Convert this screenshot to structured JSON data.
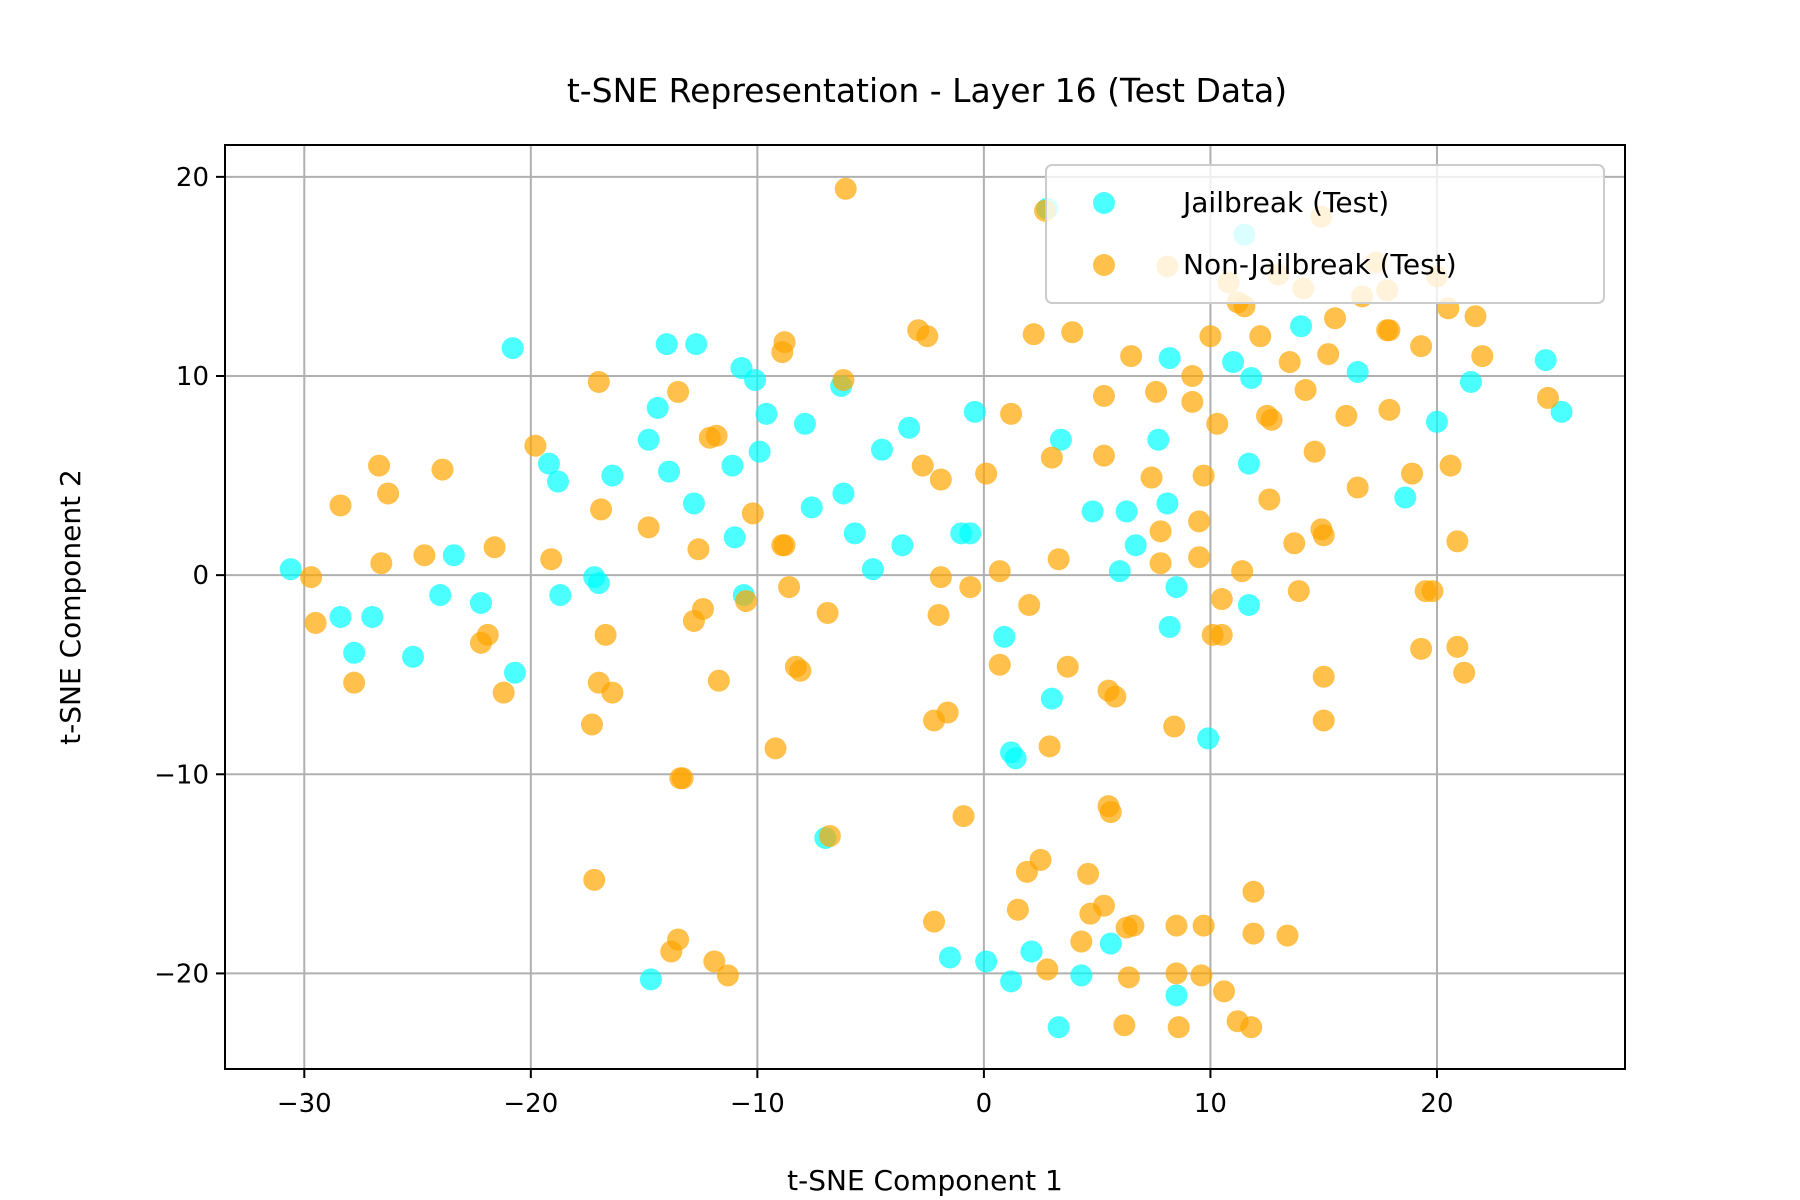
{
  "chart_data": {
    "type": "scatter",
    "title": "t-SNE Representation - Layer 16 (Test Data)",
    "xlabel": "t-SNE Component 1",
    "ylabel": "t-SNE Component 2",
    "xlim": [
      -33.5,
      28.3
    ],
    "ylim": [
      -24.8,
      21.6
    ],
    "xticks": [
      -30,
      -20,
      -10,
      0,
      10,
      20
    ],
    "yticks": [
      -20,
      -10,
      0,
      10,
      20
    ],
    "xtick_labels": [
      "−30",
      "−20",
      "−10",
      "0",
      "10",
      "20"
    ],
    "ytick_labels": [
      "−20",
      "−10",
      "0",
      "10",
      "20"
    ],
    "grid": true,
    "legend_position": "top-right",
    "series": [
      {
        "name": "Jailbreak (Test)",
        "color": "#00FFFF",
        "alpha": 0.7,
        "points": [
          [
            -30.6,
            0.3
          ],
          [
            -28.4,
            -2.1
          ],
          [
            -27.8,
            -3.9
          ],
          [
            -27.0,
            -2.1
          ],
          [
            -25.2,
            -4.1
          ],
          [
            -24.0,
            -1.0
          ],
          [
            -23.4,
            1.0
          ],
          [
            -22.2,
            -1.4
          ],
          [
            -20.8,
            11.4
          ],
          [
            -20.7,
            -4.9
          ],
          [
            -19.2,
            5.6
          ],
          [
            -18.8,
            4.7
          ],
          [
            -18.7,
            -1.0
          ],
          [
            -17.2,
            -0.1
          ],
          [
            -17.0,
            -0.4
          ],
          [
            -16.4,
            5.0
          ],
          [
            -14.8,
            6.8
          ],
          [
            -14.4,
            8.4
          ],
          [
            -14.0,
            11.6
          ],
          [
            -13.9,
            5.2
          ],
          [
            -12.7,
            11.6
          ],
          [
            -12.8,
            3.6
          ],
          [
            -11.1,
            5.5
          ],
          [
            -11.0,
            1.9
          ],
          [
            -10.7,
            10.4
          ],
          [
            -10.6,
            -1.0
          ],
          [
            -10.1,
            9.8
          ],
          [
            -9.9,
            6.2
          ],
          [
            -9.6,
            8.1
          ],
          [
            -7.9,
            7.6
          ],
          [
            -7.6,
            3.4
          ],
          [
            -7.0,
            -13.2
          ],
          [
            -6.3,
            9.5
          ],
          [
            -6.2,
            4.1
          ],
          [
            -5.7,
            2.1
          ],
          [
            -4.9,
            0.3
          ],
          [
            -4.5,
            6.3
          ],
          [
            -3.6,
            1.5
          ],
          [
            -3.3,
            7.4
          ],
          [
            -1.0,
            2.1
          ],
          [
            -0.6,
            2.1
          ],
          [
            -0.4,
            8.2
          ],
          [
            0.9,
            -3.1
          ],
          [
            1.2,
            -8.9
          ],
          [
            1.4,
            -9.2
          ],
          [
            3.0,
            -6.2
          ],
          [
            3.4,
            6.8
          ],
          [
            4.8,
            3.2
          ],
          [
            6.0,
            0.2
          ],
          [
            6.3,
            3.2
          ],
          [
            6.7,
            1.5
          ],
          [
            7.7,
            6.8
          ],
          [
            8.2,
            10.9
          ],
          [
            8.1,
            3.6
          ],
          [
            8.2,
            -2.6
          ],
          [
            8.5,
            -0.6
          ],
          [
            9.9,
            -8.2
          ],
          [
            11.0,
            10.7
          ],
          [
            11.5,
            17.1
          ],
          [
            11.7,
            5.6
          ],
          [
            11.7,
            -1.5
          ],
          [
            11.8,
            9.9
          ],
          [
            14.0,
            12.5
          ],
          [
            16.5,
            10.2
          ],
          [
            18.6,
            3.9
          ],
          [
            20.0,
            7.7
          ],
          [
            21.5,
            9.7
          ],
          [
            24.8,
            10.8
          ],
          [
            25.5,
            8.2
          ],
          [
            -14.7,
            -20.3
          ],
          [
            -1.5,
            -19.2
          ],
          [
            0.1,
            -19.4
          ],
          [
            1.2,
            -20.4
          ],
          [
            2.1,
            -18.9
          ],
          [
            3.3,
            -22.7
          ],
          [
            4.3,
            -20.1
          ],
          [
            5.6,
            -18.5
          ],
          [
            8.5,
            -21.1
          ],
          [
            2.8,
            18.4
          ]
        ]
      },
      {
        "name": "Non-Jailbreak (Test)",
        "color": "#FFA500",
        "alpha": 0.7,
        "points": [
          [
            -29.7,
            -0.1
          ],
          [
            -29.5,
            -2.4
          ],
          [
            -28.4,
            3.5
          ],
          [
            -27.8,
            -5.4
          ],
          [
            -26.7,
            5.5
          ],
          [
            -26.6,
            0.6
          ],
          [
            -26.3,
            4.1
          ],
          [
            -24.7,
            1.0
          ],
          [
            -23.9,
            5.3
          ],
          [
            -22.2,
            -3.4
          ],
          [
            -21.9,
            -3.0
          ],
          [
            -21.6,
            1.4
          ],
          [
            -21.2,
            -5.9
          ],
          [
            -19.8,
            6.5
          ],
          [
            -19.1,
            0.8
          ],
          [
            -17.3,
            -7.5
          ],
          [
            -17.2,
            -15.3
          ],
          [
            -17.0,
            9.7
          ],
          [
            -16.9,
            3.3
          ],
          [
            -17.0,
            -5.4
          ],
          [
            -16.7,
            -3.0
          ],
          [
            -16.4,
            -5.9
          ],
          [
            -14.8,
            2.4
          ],
          [
            -13.8,
            -18.9
          ],
          [
            -13.5,
            -18.3
          ],
          [
            -13.4,
            -10.2
          ],
          [
            -13.3,
            -10.2
          ],
          [
            -13.5,
            9.2
          ],
          [
            -12.6,
            1.3
          ],
          [
            -12.8,
            -2.3
          ],
          [
            -12.4,
            -1.7
          ],
          [
            -12.1,
            6.9
          ],
          [
            -11.9,
            -19.4
          ],
          [
            -11.8,
            7.0
          ],
          [
            -11.7,
            -5.3
          ],
          [
            -11.3,
            -20.1
          ],
          [
            -10.5,
            -1.3
          ],
          [
            -10.2,
            3.1
          ],
          [
            -9.2,
            -8.7
          ],
          [
            -8.9,
            11.2
          ],
          [
            -8.8,
            11.7
          ],
          [
            -8.9,
            1.5
          ],
          [
            -8.8,
            1.5
          ],
          [
            -8.6,
            -0.6
          ],
          [
            -8.3,
            -4.6
          ],
          [
            -8.1,
            -4.8
          ],
          [
            -6.9,
            -1.9
          ],
          [
            -6.8,
            -13.1
          ],
          [
            -6.1,
            19.4
          ],
          [
            -6.2,
            9.8
          ],
          [
            -2.9,
            12.3
          ],
          [
            -2.7,
            5.5
          ],
          [
            -2.5,
            12.0
          ],
          [
            -2.2,
            -7.3
          ],
          [
            -2.2,
            -17.4
          ],
          [
            -2.0,
            -2.0
          ],
          [
            -1.9,
            -0.1
          ],
          [
            -1.9,
            4.8
          ],
          [
            -1.6,
            -6.9
          ],
          [
            -0.9,
            -12.1
          ],
          [
            -0.6,
            -0.6
          ],
          [
            0.1,
            5.1
          ],
          [
            0.7,
            0.2
          ],
          [
            0.7,
            -4.5
          ],
          [
            1.2,
            8.1
          ],
          [
            1.5,
            -16.8
          ],
          [
            1.9,
            -14.9
          ],
          [
            2.0,
            -1.5
          ],
          [
            2.2,
            12.1
          ],
          [
            2.5,
            -14.3
          ],
          [
            2.8,
            -19.8
          ],
          [
            2.7,
            18.3
          ],
          [
            2.9,
            -8.6
          ],
          [
            3.0,
            5.9
          ],
          [
            3.3,
            0.8
          ],
          [
            3.7,
            -4.6
          ],
          [
            3.9,
            12.2
          ],
          [
            4.3,
            -18.4
          ],
          [
            4.6,
            -15.0
          ],
          [
            4.7,
            -17.0
          ],
          [
            5.3,
            -16.6
          ],
          [
            5.3,
            9.0
          ],
          [
            5.3,
            6.0
          ],
          [
            5.5,
            -11.6
          ],
          [
            5.5,
            -5.8
          ],
          [
            5.6,
            -11.9
          ],
          [
            5.8,
            -6.1
          ],
          [
            6.2,
            -22.6
          ],
          [
            6.4,
            -20.2
          ],
          [
            6.5,
            11.0
          ],
          [
            6.6,
            -17.6
          ],
          [
            7.4,
            4.9
          ],
          [
            7.6,
            9.2
          ],
          [
            7.8,
            2.2
          ],
          [
            7.8,
            0.6
          ],
          [
            8.1,
            15.5
          ],
          [
            8.4,
            -7.6
          ],
          [
            8.5,
            -17.6
          ],
          [
            8.5,
            -20.0
          ],
          [
            8.6,
            -22.7
          ],
          [
            9.2,
            10.0
          ],
          [
            9.2,
            8.7
          ],
          [
            9.5,
            2.7
          ],
          [
            9.5,
            0.9
          ],
          [
            9.6,
            -20.1
          ],
          [
            9.7,
            5.0
          ],
          [
            9.7,
            -17.6
          ],
          [
            10.0,
            12.0
          ],
          [
            10.1,
            -3.0
          ],
          [
            10.3,
            7.6
          ],
          [
            10.5,
            -1.2
          ],
          [
            10.5,
            -3.0
          ],
          [
            10.6,
            -20.9
          ],
          [
            10.8,
            14.7
          ],
          [
            11.2,
            -22.4
          ],
          [
            11.2,
            13.7
          ],
          [
            11.4,
            0.2
          ],
          [
            11.5,
            13.5
          ],
          [
            11.8,
            -22.7
          ],
          [
            11.9,
            -15.9
          ],
          [
            11.9,
            -18.0
          ],
          [
            12.2,
            12.0
          ],
          [
            12.5,
            8.0
          ],
          [
            12.6,
            3.8
          ],
          [
            12.7,
            7.8
          ],
          [
            13.0,
            15.1
          ],
          [
            13.4,
            -18.1
          ],
          [
            13.5,
            10.7
          ],
          [
            13.7,
            1.6
          ],
          [
            13.9,
            -0.8
          ],
          [
            14.1,
            14.4
          ],
          [
            14.2,
            9.3
          ],
          [
            14.6,
            6.2
          ],
          [
            14.9,
            18.0
          ],
          [
            14.9,
            2.3
          ],
          [
            15.0,
            2.0
          ],
          [
            15.0,
            -5.1
          ],
          [
            15.0,
            -7.3
          ],
          [
            15.2,
            11.1
          ],
          [
            15.5,
            12.9
          ],
          [
            16.0,
            8.0
          ],
          [
            16.5,
            4.4
          ],
          [
            16.7,
            14.0
          ],
          [
            17.3,
            15.7
          ],
          [
            17.8,
            14.3
          ],
          [
            17.8,
            12.3
          ],
          [
            17.9,
            12.3
          ],
          [
            17.9,
            8.3
          ],
          [
            18.9,
            5.1
          ],
          [
            19.3,
            11.5
          ],
          [
            19.3,
            -3.7
          ],
          [
            19.5,
            -0.8
          ],
          [
            19.8,
            -0.8
          ],
          [
            20.0,
            15.0
          ],
          [
            20.5,
            13.4
          ],
          [
            20.6,
            5.5
          ],
          [
            20.9,
            1.7
          ],
          [
            20.9,
            -3.6
          ],
          [
            21.2,
            -4.9
          ],
          [
            21.7,
            13.0
          ],
          [
            22.0,
            11.0
          ],
          [
            24.9,
            8.9
          ],
          [
            6.3,
            -17.7
          ]
        ]
      }
    ]
  }
}
